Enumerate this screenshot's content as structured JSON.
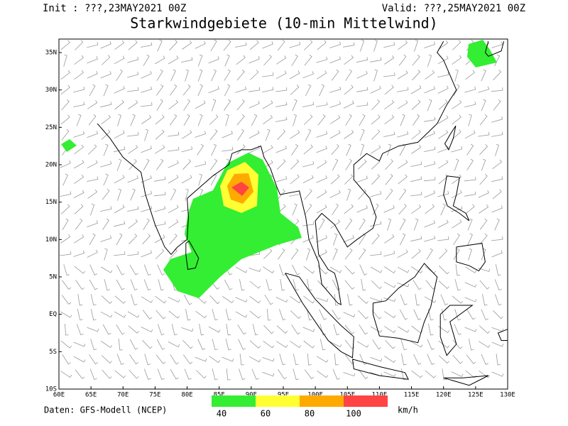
{
  "header": {
    "init": "Init : ???,23MAY2021 00Z",
    "valid": "Valid: ???,25MAY2021 00Z",
    "title": "Starkwindgebiete (10-min Mittelwind)"
  },
  "map": {
    "lon_labels": [
      "60E",
      "65E",
      "70E",
      "75E",
      "80E",
      "85E",
      "90E",
      "95E",
      "100E",
      "105E",
      "110E",
      "115E",
      "120E",
      "125E",
      "130E"
    ],
    "lat_labels": [
      "35N",
      "30N",
      "25N",
      "20N",
      "15N",
      "10N",
      "5N",
      "EQ",
      "5S",
      "10S"
    ]
  },
  "legend": {
    "colors": [
      "#33ee33",
      "#ffff33",
      "#ffaa00",
      "#ff4444"
    ],
    "labels": [
      "40",
      "60",
      "80",
      "100"
    ]
  },
  "footer": {
    "source": "Daten: GFS-Modell (NCEP)",
    "unit": "km/h"
  }
}
